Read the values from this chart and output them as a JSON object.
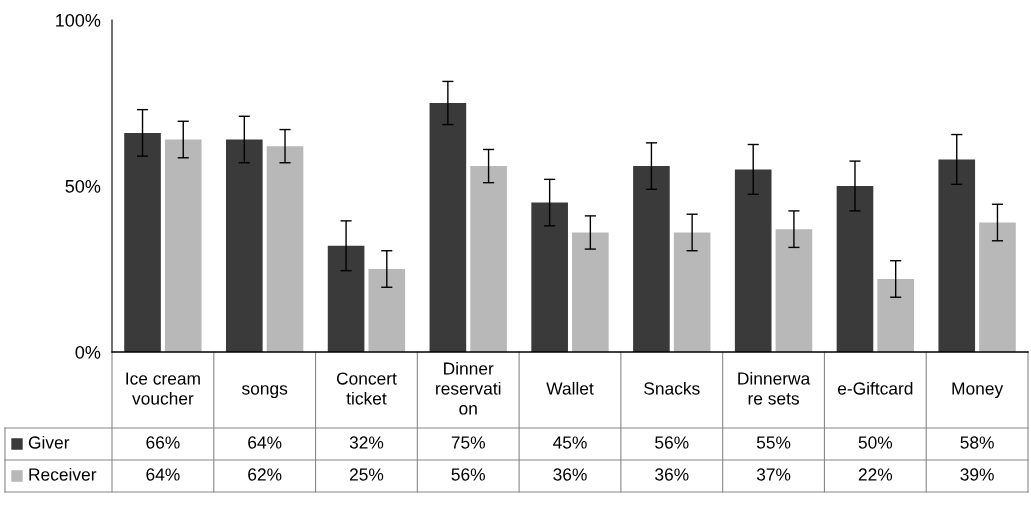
{
  "chart_data": {
    "type": "bar",
    "categories": [
      "Ice cream\nvoucher",
      "songs",
      "Concert\nticket",
      "Dinner\nreservati\non",
      "Wallet",
      "Snacks",
      "Dinnerwa\nre sets",
      "e-Giftcard",
      "Money"
    ],
    "series": [
      {
        "name": "Giver",
        "color": "#3a3a3a",
        "values": [
          66,
          64,
          32,
          75,
          45,
          56,
          55,
          50,
          58
        ],
        "errors": [
          7,
          7,
          7.5,
          6.5,
          7,
          7,
          7.5,
          7.5,
          7.5
        ],
        "value_labels": [
          "66%",
          "64%",
          "32%",
          "75%",
          "45%",
          "56%",
          "55%",
          "50%",
          "58%"
        ]
      },
      {
        "name": "Receiver",
        "color": "#b8b8b8",
        "values": [
          64,
          62,
          25,
          56,
          36,
          36,
          37,
          22,
          39
        ],
        "errors": [
          5.5,
          5,
          5.5,
          5,
          5,
          5.5,
          5.5,
          5.5,
          5.5
        ],
        "value_labels": [
          "64%",
          "62%",
          "25%",
          "56%",
          "36%",
          "36%",
          "37%",
          "22%",
          "39%"
        ]
      }
    ],
    "ylim": [
      0,
      100
    ],
    "yticks": [
      {
        "value": 0,
        "label": "0%"
      },
      {
        "value": 50,
        "label": "50%"
      },
      {
        "value": 100,
        "label": "100%"
      }
    ],
    "grid": false,
    "legend": "bottom left"
  }
}
